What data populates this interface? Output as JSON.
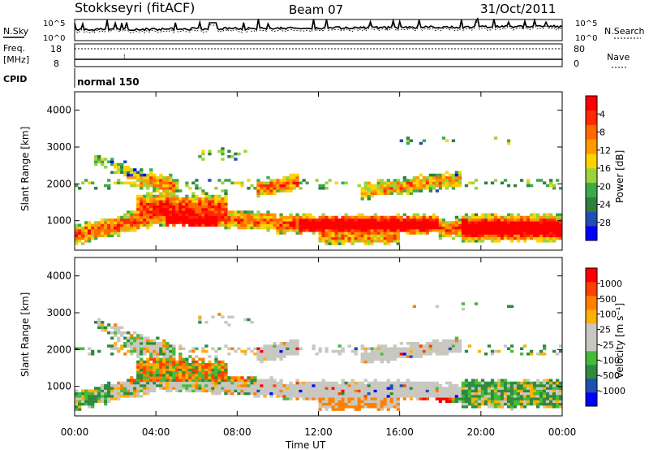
{
  "header": {
    "title": "Stokkseyri (fitACF)",
    "beam": "Beam 07",
    "date": "31/Oct/2011"
  },
  "top_panels": {
    "nsky_label": "N.Sky",
    "nsearch_label": "N.Search",
    "nsky_ticks": [
      "10^5",
      "10^0"
    ],
    "nsearch_ticks": [
      "10^5",
      "10^0"
    ],
    "freq_label": "Freq.",
    "freq_unit": "[MHz]",
    "freq_ticks": [
      "18",
      "8"
    ],
    "nave_label": "Nave",
    "nave_ticks": [
      "80",
      "0"
    ],
    "cpid_label": "CPID",
    "cpid_value": "normal 150"
  },
  "chart_data": [
    {
      "type": "heatmap",
      "title": "",
      "xlabel": "Time UT",
      "ylabel": "Slant Range [km]",
      "x_ticks": [
        "00:00",
        "04:00",
        "08:00",
        "12:00",
        "16:00",
        "20:00",
        "00:00"
      ],
      "xlim": [
        0,
        24
      ],
      "ylim": [
        200,
        4500
      ],
      "y_ticks": [
        "1000",
        "2000",
        "3000",
        "4000"
      ],
      "colorbar": {
        "label": "Power [dB]",
        "ticks": [
          "4",
          "8",
          "12",
          "16",
          "20",
          "24",
          "28"
        ],
        "colors": [
          "#0000ff",
          "#1f4fb0",
          "#2f7f3f",
          "#3caa4a",
          "#9ad43a",
          "#ffd200",
          "#ff9a00",
          "#ff6a00",
          "#ff2a00",
          "#ff0000"
        ]
      }
    },
    {
      "type": "heatmap",
      "title": "",
      "xlabel": "Time UT",
      "ylabel": "Slant Range [km]",
      "x_ticks": [
        "00:00",
        "04:00",
        "08:00",
        "12:00",
        "16:00",
        "20:00",
        "00:00"
      ],
      "xlim": [
        0,
        24
      ],
      "ylim": [
        200,
        4500
      ],
      "y_ticks": [
        "1000",
        "2000",
        "3000",
        "4000"
      ],
      "colorbar": {
        "label": "Velocity [m s⁻¹]",
        "ticks": [
          "1000",
          "500",
          "100",
          "25",
          "-25",
          "-100",
          "-500",
          "-1000"
        ],
        "colors": [
          "#0000ff",
          "#1f4fb0",
          "#2f8a3f",
          "#45bb3a",
          "#c8c8c0",
          "#c8c8c0",
          "#ffb000",
          "#ff8000",
          "#ff4000",
          "#ff0000"
        ]
      }
    }
  ]
}
